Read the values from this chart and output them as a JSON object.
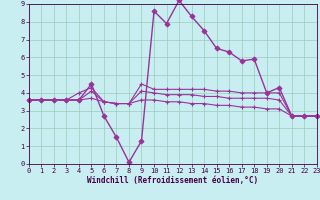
{
  "xlabel": "Windchill (Refroidissement éolien,°C)",
  "background_color": "#c8eef2",
  "grid_color": "#99ccbb",
  "line_color": "#993399",
  "xlim": [
    0,
    23
  ],
  "ylim": [
    0,
    9
  ],
  "xticks": [
    0,
    1,
    2,
    3,
    4,
    5,
    6,
    7,
    8,
    9,
    10,
    11,
    12,
    13,
    14,
    15,
    16,
    17,
    18,
    19,
    20,
    21,
    22,
    23
  ],
  "yticks": [
    0,
    1,
    2,
    3,
    4,
    5,
    6,
    7,
    8,
    9
  ],
  "series": [
    {
      "x": [
        0,
        1,
        2,
        3,
        4,
        5,
        6,
        7,
        8,
        9,
        10,
        11,
        12,
        13,
        14,
        15,
        16,
        17,
        18,
        19,
        20,
        21,
        22,
        23
      ],
      "y": [
        3.6,
        3.6,
        3.6,
        3.6,
        3.6,
        4.5,
        2.7,
        1.5,
        0.1,
        1.3,
        8.6,
        7.9,
        9.2,
        8.3,
        7.5,
        6.5,
        6.3,
        5.8,
        5.9,
        4.0,
        4.3,
        2.7,
        2.7,
        2.7
      ],
      "marker": "D",
      "ms": 2.5,
      "lw": 1.0
    },
    {
      "x": [
        0,
        1,
        2,
        3,
        4,
        5,
        6,
        7,
        8,
        9,
        10,
        11,
        12,
        13,
        14,
        15,
        16,
        17,
        18,
        19,
        20,
        21,
        22,
        23
      ],
      "y": [
        3.6,
        3.6,
        3.6,
        3.6,
        4.0,
        4.3,
        3.5,
        3.4,
        3.4,
        4.1,
        4.0,
        3.9,
        3.9,
        3.9,
        3.8,
        3.8,
        3.7,
        3.7,
        3.7,
        3.7,
        3.6,
        2.7,
        2.7,
        2.7
      ],
      "marker": "+",
      "ms": 3.5,
      "lw": 0.8
    },
    {
      "x": [
        0,
        1,
        2,
        3,
        4,
        5,
        6,
        7,
        8,
        9,
        10,
        11,
        12,
        13,
        14,
        15,
        16,
        17,
        18,
        19,
        20,
        21,
        22,
        23
      ],
      "y": [
        3.6,
        3.6,
        3.6,
        3.6,
        3.6,
        4.1,
        3.5,
        3.4,
        3.4,
        4.5,
        4.2,
        4.2,
        4.2,
        4.2,
        4.2,
        4.1,
        4.1,
        4.0,
        4.0,
        4.0,
        4.0,
        2.7,
        2.7,
        2.7
      ],
      "marker": "+",
      "ms": 3.5,
      "lw": 0.8
    },
    {
      "x": [
        0,
        1,
        2,
        3,
        4,
        5,
        6,
        7,
        8,
        9,
        10,
        11,
        12,
        13,
        14,
        15,
        16,
        17,
        18,
        19,
        20,
        21,
        22,
        23
      ],
      "y": [
        3.6,
        3.6,
        3.6,
        3.6,
        3.6,
        3.7,
        3.5,
        3.4,
        3.4,
        3.6,
        3.6,
        3.5,
        3.5,
        3.4,
        3.4,
        3.3,
        3.3,
        3.2,
        3.2,
        3.1,
        3.1,
        2.7,
        2.7,
        2.7
      ],
      "marker": "+",
      "ms": 3.5,
      "lw": 0.8
    }
  ]
}
